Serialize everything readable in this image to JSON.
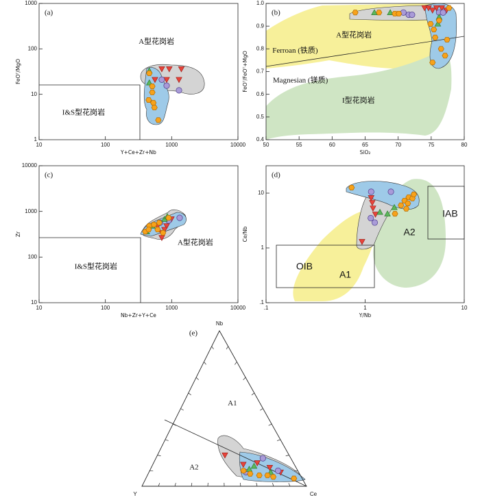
{
  "chart_data": [
    {
      "type": "scatter",
      "panel_label": "(a)",
      "xlabel": "Y+Ce+Zr+Nb",
      "ylabel": "FeOᵀ/MgO",
      "xlog": true,
      "ylog": true,
      "xlim": [
        10,
        10000
      ],
      "ylim": [
        1,
        1000
      ],
      "xticks": [
        10,
        100,
        1000,
        10000
      ],
      "yticks": [
        1,
        10,
        100,
        1000
      ],
      "series": [
        {
          "color": "#e8443a",
          "marker": "triangle-down",
          "x": [
            710,
            920,
            1400,
            560,
            840,
            1290
          ],
          "values": [
            36,
            36,
            36,
            21,
            21,
            21
          ]
        },
        {
          "color": "#a99bd8",
          "marker": "circle",
          "x": [
            710,
            840,
            1290
          ],
          "values": [
            21,
            15.5,
            12.2
          ]
        },
        {
          "color": "#5cb85c",
          "marker": "triangle-up",
          "x": [
            460,
            460
          ],
          "values": [
            33,
            18
          ]
        },
        {
          "color": "#f7a21b",
          "marker": "hexagon",
          "x": [
            460,
            510,
            510,
            450,
            530,
            550,
            630
          ],
          "values": [
            29,
            15,
            11,
            7.5,
            6.5,
            5.1,
            2.7
          ]
        }
      ],
      "annotations": [
        {
          "text": "A型花岗岩",
          "x": 590,
          "y": 140
        },
        {
          "text": "I&S型花岗岩",
          "x": 47,
          "y": 3.9
        }
      ]
    },
    {
      "type": "scatter",
      "panel_label": "(b)",
      "xlabel": "SiO₂",
      "ylabel": "FeOᵀ/FeOᵀ+MgO",
      "xlog": false,
      "ylog": false,
      "xlim": [
        50,
        80
      ],
      "ylim": [
        0.4,
        1
      ],
      "xticks": [
        50,
        55,
        60,
        65,
        70,
        75,
        80
      ],
      "yticks": [
        0.4,
        0.5,
        0.6,
        0.7,
        0.8,
        0.9,
        {
          "value": 1,
          "label": "1.0"
        }
      ],
      "series": [
        {
          "color": "#e8443a",
          "marker": "triangle-down",
          "x": [
            74,
            74.6,
            75.2,
            75.8,
            76.6,
            77.3
          ],
          "values": [
            0.98,
            0.98,
            0.97,
            0.98,
            0.98,
            0.97
          ]
        },
        {
          "color": "#a99bd8",
          "marker": "circle",
          "x": [
            70.8,
            71.6,
            72.1,
            76.2,
            76.8
          ],
          "values": [
            0.96,
            0.95,
            0.95,
            0.96,
            0.96
          ]
        },
        {
          "color": "#5cb85c",
          "marker": "triangle-up",
          "x": [
            66.4,
            68.8,
            76.2,
            76
          ],
          "values": [
            0.96,
            0.96,
            0.94,
            0.91
          ]
        },
        {
          "color": "#f7a21b",
          "marker": "hexagon",
          "x": [
            63.5,
            67.1,
            69.5,
            70.1,
            76.2,
            75.4,
            75.6,
            76.5,
            77.1,
            77.4,
            75.2,
            74.9,
            77.7
          ],
          "values": [
            0.96,
            0.96,
            0.955,
            0.955,
            0.925,
            0.885,
            0.85,
            0.8,
            0.77,
            0.84,
            0.74,
            0.91,
            0.98
          ]
        }
      ],
      "annotations": [
        {
          "text": "A型花岗岩",
          "x": 63.3,
          "y": 0.858
        },
        {
          "text": "Ferroan (铁质)",
          "x": 54.4,
          "y": 0.79
        },
        {
          "text": "Magnesian (镁质)",
          "x": 55.2,
          "y": 0.66
        },
        {
          "text": "I型花岗岩",
          "x": 64,
          "y": 0.57
        }
      ]
    },
    {
      "type": "scatter",
      "panel_label": "(c)",
      "xlabel": "Nb+Zr+Y+Ce",
      "ylabel": "Zr",
      "xlog": true,
      "ylog": true,
      "xlim": [
        10,
        10000
      ],
      "ylim": [
        10,
        10000
      ],
      "xticks": [
        10,
        100,
        1000,
        10000
      ],
      "yticks": [
        10,
        100,
        1000,
        10000
      ],
      "series": [
        {
          "color": "#e8443a",
          "marker": "triangle-down",
          "x": [
            615,
            710,
            840,
            990,
            710,
            780
          ],
          "values": [
            480,
            340,
            480,
            680,
            265,
            400
          ]
        },
        {
          "color": "#a99bd8",
          "marker": "circle",
          "x": [
            1320,
            670,
            900
          ],
          "values": [
            723,
            565,
            630
          ]
        },
        {
          "color": "#5cb85c",
          "marker": "triangle-up",
          "x": [
            420,
            780,
            860,
            510
          ],
          "values": [
            360,
            675,
            780,
            480
          ]
        },
        {
          "color": "#f7a21b",
          "marker": "hexagon",
          "x": [
            400,
            460,
            540,
            615,
            650,
            740,
            900,
            450
          ],
          "values": [
            360,
            480,
            515,
            400,
            565,
            340,
            720,
            400
          ]
        }
      ],
      "annotations": [
        {
          "text": "A型花岗岩",
          "x": 2280,
          "y": 201
        },
        {
          "text": "I&S型花岗岩",
          "x": 72,
          "y": 60
        }
      ]
    },
    {
      "type": "scatter",
      "panel_label": "(d)",
      "xlabel": "Y/Nb",
      "ylabel": "Ce/Nb",
      "xlog": true,
      "ylog": true,
      "xlim": [
        0.1,
        10
      ],
      "ylim": [
        0.1,
        31.62
      ],
      "xticks": [
        {
          "value": 0.1,
          "label": ".1"
        },
        1,
        10
      ],
      "yticks": [
        {
          "value": 0.1,
          "label": ".1"
        },
        1,
        10
      ],
      "series": [
        {
          "color": "#e8443a",
          "marker": "triangle-down",
          "x": [
            1.15,
            1.2,
            1.27,
            0.93,
            1.18
          ],
          "values": [
            8.2,
            5.3,
            4.1,
            1.3,
            6.7
          ]
        },
        {
          "color": "#a99bd8",
          "marker": "circle",
          "x": [
            1.15,
            1.82,
            1.25,
            1.14
          ],
          "values": [
            10.6,
            10.6,
            2.9,
            3.5
          ]
        },
        {
          "color": "#5cb85c",
          "marker": "triangle-up",
          "x": [
            1.68,
            1.41,
            1.97
          ],
          "values": [
            4.2,
            4.5,
            5.5
          ]
        },
        {
          "color": "#f7a21b",
          "marker": "hexagon",
          "x": [
            0.73,
            2.5,
            2.75,
            3,
            2.7,
            2.3,
            2,
            3.1,
            2.6
          ],
          "values": [
            12.6,
            7.3,
            8.4,
            8,
            6.5,
            6,
            4.2,
            9.5,
            5.2
          ]
        }
      ],
      "annotations": [
        {
          "text": "OIB",
          "x": 0.244,
          "y": 0.45
        },
        {
          "text": "A1",
          "x": 0.63,
          "y": 0.32
        },
        {
          "text": "A2",
          "x": 2.8,
          "y": 1.9
        },
        {
          "text": "IAB",
          "x": 7.2,
          "y": 4.1
        }
      ]
    },
    {
      "type": "ternary",
      "panel_label": "(e)",
      "axes": [
        "Nb",
        "Y",
        "Ce"
      ],
      "series": [
        {
          "color": "#e8443a",
          "marker": "triangle-down",
          "values": [
            [
              20,
              39,
              41
            ],
            [
              15,
              22,
              63
            ],
            [
              12,
              16,
              72
            ],
            [
              9,
              11,
              80
            ],
            [
              14,
              31,
              55
            ]
          ]
        },
        {
          "color": "#a99bd8",
          "marker": "circle",
          "values": [
            [
              18,
              17,
              65
            ],
            [
              9,
              32,
              59
            ],
            [
              10,
              12,
              78
            ]
          ]
        },
        {
          "color": "#5cb85c",
          "marker": "triangle-up",
          "values": [
            [
              13,
              25,
              62
            ],
            [
              9,
              17,
              74
            ],
            [
              11,
              29,
              60
            ]
          ]
        },
        {
          "color": "#f7a21b",
          "marker": "hexagon",
          "values": [
            [
              8,
              30,
              62
            ],
            [
              7,
              25,
              68
            ],
            [
              7,
              20,
              73
            ],
            [
              5,
              5,
              90
            ],
            [
              6,
              17,
              77
            ],
            [
              10,
              33,
              57
            ]
          ]
        }
      ],
      "annotations": [
        {
          "text": "A1",
          "at": [
            53,
            17,
            30
          ]
        },
        {
          "text": "A2",
          "at": [
            12,
            62,
            26
          ]
        }
      ]
    }
  ]
}
